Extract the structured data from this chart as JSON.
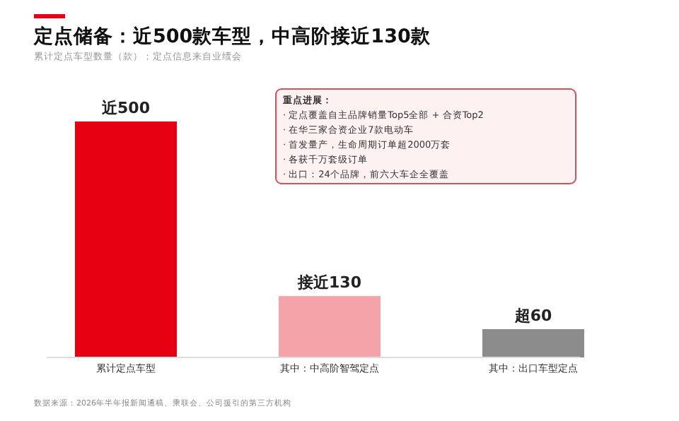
{
  "chart_data": {
    "type": "bar",
    "title": "定点储备：近500款车型，中高阶接近130款",
    "subtitle": "累计定点车型数量（款）；定点信息来自业绩会",
    "categories": [
      "累计定点车型",
      "其中：中高阶智驾定点",
      "其中：出口车型定点"
    ],
    "values": [
      500,
      130,
      60
    ],
    "colors": [
      "#e60012",
      "#f4a3a8",
      "#8c8c8c"
    ],
    "value_labels": [
      "近500",
      "接近130",
      "超60"
    ],
    "annotations": [
      "重点进展：",
      "· 定点覆盖自主品牌销量Top5全部 + 合资Top2",
      "· 在华三家合资企业7款电动车",
      "· 首发量产，生命周期订单超2000万套",
      "· 各获千万套级订单",
      "· 出口：24个品牌，前六大车企全覆盖",
      "数据来源：2026年半年报新闻通稿、乘联会、公司援引的第三方机构"
    ]
  }
}
